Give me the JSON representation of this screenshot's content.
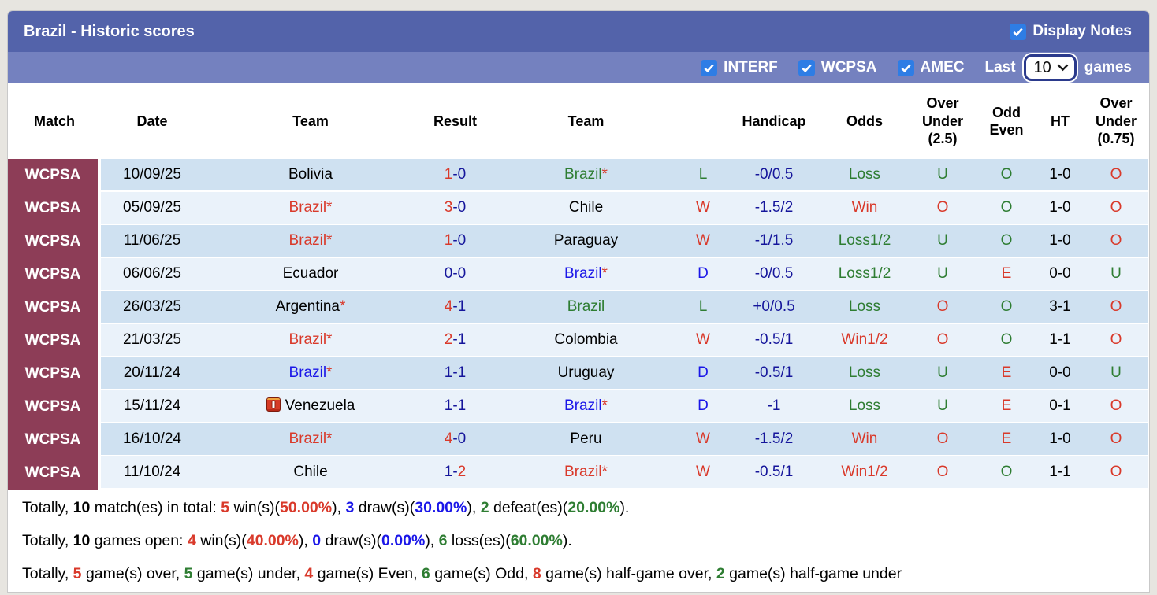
{
  "title_bar": {
    "title": "Brazil - Historic scores",
    "display_notes_label": "Display Notes",
    "display_notes_checked": true
  },
  "filter_bar": {
    "checkboxes": [
      {
        "label": "INTERF",
        "checked": true
      },
      {
        "label": "WCPSA",
        "checked": true
      },
      {
        "label": "AMEC",
        "checked": true
      }
    ],
    "last_label": "Last",
    "games_count": "10",
    "games_label": "games"
  },
  "table": {
    "columns": [
      "Match",
      "Date",
      "Team",
      "Result",
      "Team",
      "",
      "Handicap",
      "Odds",
      "Over Under (2.5)",
      "Odd Even",
      "HT",
      "Over Under (0.75)"
    ],
    "rows": [
      {
        "match": "WCPSA",
        "date": "10/09/25",
        "home": {
          "name": "Bolivia",
          "color": "black",
          "asterisk": false,
          "note_icon": false
        },
        "result": {
          "home": "1",
          "away": "0",
          "home_color": "red",
          "away_color": "navy"
        },
        "away": {
          "name": "Brazil",
          "color": "green",
          "asterisk": true,
          "note_icon": false
        },
        "wld": {
          "text": "L",
          "color": "green"
        },
        "handicap": "-0/0.5",
        "odds": {
          "text": "Loss",
          "color": "green"
        },
        "over_under_25": {
          "text": "U",
          "color": "green"
        },
        "odd_even": {
          "text": "O",
          "color": "green"
        },
        "ht": "1-0",
        "over_under_075": {
          "text": "O",
          "color": "red"
        }
      },
      {
        "match": "WCPSA",
        "date": "05/09/25",
        "home": {
          "name": "Brazil",
          "color": "red",
          "asterisk": true,
          "note_icon": false
        },
        "result": {
          "home": "3",
          "away": "0",
          "home_color": "red",
          "away_color": "navy"
        },
        "away": {
          "name": "Chile",
          "color": "black",
          "asterisk": false,
          "note_icon": false
        },
        "wld": {
          "text": "W",
          "color": "red"
        },
        "handicap": "-1.5/2",
        "odds": {
          "text": "Win",
          "color": "red"
        },
        "over_under_25": {
          "text": "O",
          "color": "red"
        },
        "odd_even": {
          "text": "O",
          "color": "green"
        },
        "ht": "1-0",
        "over_under_075": {
          "text": "O",
          "color": "red"
        }
      },
      {
        "match": "WCPSA",
        "date": "11/06/25",
        "home": {
          "name": "Brazil",
          "color": "red",
          "asterisk": true,
          "note_icon": false
        },
        "result": {
          "home": "1",
          "away": "0",
          "home_color": "red",
          "away_color": "navy"
        },
        "away": {
          "name": "Paraguay",
          "color": "black",
          "asterisk": false,
          "note_icon": false
        },
        "wld": {
          "text": "W",
          "color": "red"
        },
        "handicap": "-1/1.5",
        "odds": {
          "text": "Loss1/2",
          "color": "green"
        },
        "over_under_25": {
          "text": "U",
          "color": "green"
        },
        "odd_even": {
          "text": "O",
          "color": "green"
        },
        "ht": "1-0",
        "over_under_075": {
          "text": "O",
          "color": "red"
        }
      },
      {
        "match": "WCPSA",
        "date": "06/06/25",
        "home": {
          "name": "Ecuador",
          "color": "black",
          "asterisk": false,
          "note_icon": false
        },
        "result": {
          "home": "0",
          "away": "0",
          "home_color": "navy",
          "away_color": "navy"
        },
        "away": {
          "name": "Brazil",
          "color": "blue",
          "asterisk": true,
          "note_icon": false
        },
        "wld": {
          "text": "D",
          "color": "blue"
        },
        "handicap": "-0/0.5",
        "odds": {
          "text": "Loss1/2",
          "color": "green"
        },
        "over_under_25": {
          "text": "U",
          "color": "green"
        },
        "odd_even": {
          "text": "E",
          "color": "red"
        },
        "ht": "0-0",
        "over_under_075": {
          "text": "U",
          "color": "green"
        }
      },
      {
        "match": "WCPSA",
        "date": "26/03/25",
        "home": {
          "name": "Argentina",
          "color": "black",
          "asterisk": true,
          "note_icon": false
        },
        "result": {
          "home": "4",
          "away": "1",
          "home_color": "red",
          "away_color": "navy"
        },
        "away": {
          "name": "Brazil",
          "color": "green",
          "asterisk": false,
          "note_icon": false
        },
        "wld": {
          "text": "L",
          "color": "green"
        },
        "handicap": "+0/0.5",
        "odds": {
          "text": "Loss",
          "color": "green"
        },
        "over_under_25": {
          "text": "O",
          "color": "red"
        },
        "odd_even": {
          "text": "O",
          "color": "green"
        },
        "ht": "3-1",
        "over_under_075": {
          "text": "O",
          "color": "red"
        }
      },
      {
        "match": "WCPSA",
        "date": "21/03/25",
        "home": {
          "name": "Brazil",
          "color": "red",
          "asterisk": true,
          "note_icon": false
        },
        "result": {
          "home": "2",
          "away": "1",
          "home_color": "red",
          "away_color": "navy"
        },
        "away": {
          "name": "Colombia",
          "color": "black",
          "asterisk": false,
          "note_icon": false
        },
        "wld": {
          "text": "W",
          "color": "red"
        },
        "handicap": "-0.5/1",
        "odds": {
          "text": "Win1/2",
          "color": "red"
        },
        "over_under_25": {
          "text": "O",
          "color": "red"
        },
        "odd_even": {
          "text": "O",
          "color": "green"
        },
        "ht": "1-1",
        "over_under_075": {
          "text": "O",
          "color": "red"
        }
      },
      {
        "match": "WCPSA",
        "date": "20/11/24",
        "home": {
          "name": "Brazil",
          "color": "blue",
          "asterisk": true,
          "note_icon": false
        },
        "result": {
          "home": "1",
          "away": "1",
          "home_color": "navy",
          "away_color": "navy"
        },
        "away": {
          "name": "Uruguay",
          "color": "black",
          "asterisk": false,
          "note_icon": false
        },
        "wld": {
          "text": "D",
          "color": "blue"
        },
        "handicap": "-0.5/1",
        "odds": {
          "text": "Loss",
          "color": "green"
        },
        "over_under_25": {
          "text": "U",
          "color": "green"
        },
        "odd_even": {
          "text": "E",
          "color": "red"
        },
        "ht": "0-0",
        "over_under_075": {
          "text": "U",
          "color": "green"
        }
      },
      {
        "match": "WCPSA",
        "date": "15/11/24",
        "home": {
          "name": "Venezuela",
          "color": "black",
          "asterisk": false,
          "note_icon": true
        },
        "result": {
          "home": "1",
          "away": "1",
          "home_color": "navy",
          "away_color": "navy"
        },
        "away": {
          "name": "Brazil",
          "color": "blue",
          "asterisk": true,
          "note_icon": false
        },
        "wld": {
          "text": "D",
          "color": "blue"
        },
        "handicap": "-1",
        "odds": {
          "text": "Loss",
          "color": "green"
        },
        "over_under_25": {
          "text": "U",
          "color": "green"
        },
        "odd_even": {
          "text": "E",
          "color": "red"
        },
        "ht": "0-1",
        "over_under_075": {
          "text": "O",
          "color": "red"
        }
      },
      {
        "match": "WCPSA",
        "date": "16/10/24",
        "home": {
          "name": "Brazil",
          "color": "red",
          "asterisk": true,
          "note_icon": false
        },
        "result": {
          "home": "4",
          "away": "0",
          "home_color": "red",
          "away_color": "navy"
        },
        "away": {
          "name": "Peru",
          "color": "black",
          "asterisk": false,
          "note_icon": false
        },
        "wld": {
          "text": "W",
          "color": "red"
        },
        "handicap": "-1.5/2",
        "odds": {
          "text": "Win",
          "color": "red"
        },
        "over_under_25": {
          "text": "O",
          "color": "red"
        },
        "odd_even": {
          "text": "E",
          "color": "red"
        },
        "ht": "1-0",
        "over_under_075": {
          "text": "O",
          "color": "red"
        }
      },
      {
        "match": "WCPSA",
        "date": "11/10/24",
        "home": {
          "name": "Chile",
          "color": "black",
          "asterisk": false,
          "note_icon": false
        },
        "result": {
          "home": "1",
          "away": "2",
          "home_color": "navy",
          "away_color": "red"
        },
        "away": {
          "name": "Brazil",
          "color": "red",
          "asterisk": true,
          "note_icon": false
        },
        "wld": {
          "text": "W",
          "color": "red"
        },
        "handicap": "-0.5/1",
        "odds": {
          "text": "Win1/2",
          "color": "red"
        },
        "over_under_25": {
          "text": "O",
          "color": "red"
        },
        "odd_even": {
          "text": "O",
          "color": "green"
        },
        "ht": "1-1",
        "over_under_075": {
          "text": "O",
          "color": "red"
        }
      }
    ]
  },
  "summary_lines": [
    [
      {
        "t": "Totally, ",
        "c": "black",
        "b": false
      },
      {
        "t": "10",
        "c": "black",
        "b": true
      },
      {
        "t": " match(es) in total: ",
        "c": "black",
        "b": false
      },
      {
        "t": "5",
        "c": "red",
        "b": true
      },
      {
        "t": " win(s)(",
        "c": "black",
        "b": false
      },
      {
        "t": "50.00%",
        "c": "red",
        "b": true
      },
      {
        "t": "), ",
        "c": "black",
        "b": false
      },
      {
        "t": "3",
        "c": "blue",
        "b": true
      },
      {
        "t": " draw(s)(",
        "c": "black",
        "b": false
      },
      {
        "t": "30.00%",
        "c": "blue",
        "b": true
      },
      {
        "t": "), ",
        "c": "black",
        "b": false
      },
      {
        "t": "2",
        "c": "green",
        "b": true
      },
      {
        "t": " defeat(es)(",
        "c": "black",
        "b": false
      },
      {
        "t": "20.00%",
        "c": "green",
        "b": true
      },
      {
        "t": ").",
        "c": "black",
        "b": false
      }
    ],
    [
      {
        "t": "Totally, ",
        "c": "black",
        "b": false
      },
      {
        "t": "10",
        "c": "black",
        "b": true
      },
      {
        "t": " games open: ",
        "c": "black",
        "b": false
      },
      {
        "t": "4",
        "c": "red",
        "b": true
      },
      {
        "t": " win(s)(",
        "c": "black",
        "b": false
      },
      {
        "t": "40.00%",
        "c": "red",
        "b": true
      },
      {
        "t": "), ",
        "c": "black",
        "b": false
      },
      {
        "t": "0",
        "c": "blue",
        "b": true
      },
      {
        "t": " draw(s)(",
        "c": "black",
        "b": false
      },
      {
        "t": "0.00%",
        "c": "blue",
        "b": true
      },
      {
        "t": "), ",
        "c": "black",
        "b": false
      },
      {
        "t": "6",
        "c": "green",
        "b": true
      },
      {
        "t": " loss(es)(",
        "c": "black",
        "b": false
      },
      {
        "t": "60.00%",
        "c": "green",
        "b": true
      },
      {
        "t": ").",
        "c": "black",
        "b": false
      }
    ],
    [
      {
        "t": "Totally, ",
        "c": "black",
        "b": false
      },
      {
        "t": "5",
        "c": "red",
        "b": true
      },
      {
        "t": " game(s) over, ",
        "c": "black",
        "b": false
      },
      {
        "t": "5",
        "c": "green",
        "b": true
      },
      {
        "t": " game(s) under, ",
        "c": "black",
        "b": false
      },
      {
        "t": "4",
        "c": "red",
        "b": true
      },
      {
        "t": " game(s) Even, ",
        "c": "black",
        "b": false
      },
      {
        "t": "6",
        "c": "green",
        "b": true
      },
      {
        "t": " game(s) Odd, ",
        "c": "black",
        "b": false
      },
      {
        "t": "8",
        "c": "red",
        "b": true
      },
      {
        "t": " game(s) half-game over, ",
        "c": "black",
        "b": false
      },
      {
        "t": "2",
        "c": "green",
        "b": true
      },
      {
        "t": " game(s) half-game under",
        "c": "black",
        "b": false
      }
    ]
  ],
  "colors": {
    "red": "#d9392a",
    "green": "#2e7d32",
    "blue": "#1a16e8",
    "navy": "#15159b",
    "black": "#000000",
    "title_bar_bg": "#5363aa",
    "filter_bar_bg": "#7481bf",
    "match_col_bg": "#8d3d57",
    "row_odd_bg": "#cfe1f1",
    "row_even_bg": "#eaf2fa",
    "checkbox_blue": "#2e7de5"
  }
}
